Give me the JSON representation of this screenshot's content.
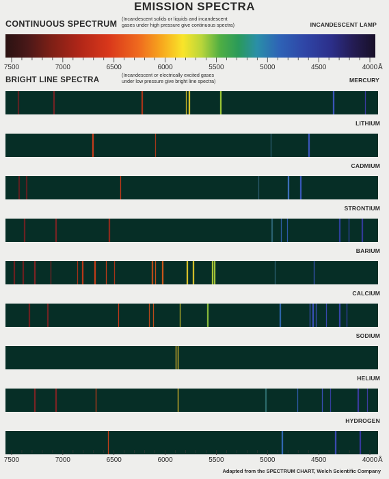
{
  "title": "EMISSION SPECTRA",
  "continuous": {
    "heading": "CONTINUOUS SPECTRUM",
    "note_line1": "(Incandescent solids or liquids and incandescent",
    "note_line2": "gases under high pressure give continuous spectra)",
    "source_label": "INCANDESCENT LAMP"
  },
  "bright": {
    "heading": "BRIGHT LINE SPECTRA",
    "note_line1": "(Incandescent or electrically excited gases",
    "note_line2": "under low pressure give bright line spectra)"
  },
  "axis": {
    "ticks": [
      7500,
      7000,
      6500,
      6000,
      5500,
      5000,
      4500,
      4000
    ],
    "labels": [
      "7500",
      "7000",
      "6500",
      "6000",
      "5500",
      "5000",
      "4500",
      "4000"
    ],
    "unit": "Å",
    "range": [
      7560,
      3920
    ]
  },
  "elements": [
    {
      "name": "MERCURY",
      "lines": [
        {
          "w": 7440,
          "c": "#5a2222"
        },
        {
          "w": 7090,
          "c": "#702424"
        },
        {
          "w": 6230,
          "c": "#a83418"
        },
        {
          "w": 5800,
          "c": "#c9b426"
        },
        {
          "w": 5770,
          "c": "#d7c22a"
        },
        {
          "w": 5460,
          "c": "#9ac435"
        },
        {
          "w": 4360,
          "c": "#3a55b8"
        },
        {
          "w": 4050,
          "c": "#3a3aa0"
        }
      ]
    },
    {
      "name": "LITHIUM",
      "lines": [
        {
          "w": 6710,
          "c": "#c23c1c"
        },
        {
          "w": 6100,
          "c": "#a4381a"
        },
        {
          "w": 4970,
          "c": "#2b5e6e"
        },
        {
          "w": 4600,
          "c": "#3a56b8"
        }
      ]
    },
    {
      "name": "CADMIUM",
      "lines": [
        {
          "w": 7430,
          "c": "#5a2020"
        },
        {
          "w": 7360,
          "c": "#5a2020"
        },
        {
          "w": 6440,
          "c": "#c03818"
        },
        {
          "w": 5090,
          "c": "#2a5a6a"
        },
        {
          "w": 4800,
          "c": "#3b6fb9"
        },
        {
          "w": 4680,
          "c": "#3857b8"
        }
      ]
    },
    {
      "name": "STRONTIUM",
      "lines": [
        {
          "w": 7380,
          "c": "#6a2222"
        },
        {
          "w": 7070,
          "c": "#742424"
        },
        {
          "w": 6550,
          "c": "#8a2a1c"
        },
        {
          "w": 4960,
          "c": "#2a6070"
        },
        {
          "w": 4870,
          "c": "#2f5fa6"
        },
        {
          "w": 4810,
          "c": "#2c58a8"
        },
        {
          "w": 4300,
          "c": "#2c3f9a"
        },
        {
          "w": 4210,
          "c": "#3245a4"
        },
        {
          "w": 4080,
          "c": "#323a96"
        }
      ]
    },
    {
      "name": "BARIUM",
      "lines": [
        {
          "w": 7480,
          "c": "#6a2020"
        },
        {
          "w": 7390,
          "c": "#6a2020"
        },
        {
          "w": 7280,
          "c": "#7a2424"
        },
        {
          "w": 7120,
          "c": "#762424"
        },
        {
          "w": 6860,
          "c": "#a03018"
        },
        {
          "w": 6810,
          "c": "#b63818"
        },
        {
          "w": 6690,
          "c": "#c03c18"
        },
        {
          "w": 6580,
          "c": "#c23c18"
        },
        {
          "w": 6500,
          "c": "#a53418"
        },
        {
          "w": 6130,
          "c": "#b64a18"
        },
        {
          "w": 6100,
          "c": "#c04c1a"
        },
        {
          "w": 6030,
          "c": "#c8561a"
        },
        {
          "w": 5790,
          "c": "#d7c02a"
        },
        {
          "w": 5730,
          "c": "#d0bc2a"
        },
        {
          "w": 5540,
          "c": "#aac437"
        },
        {
          "w": 5520,
          "c": "#9cc038"
        },
        {
          "w": 4930,
          "c": "#2a6070"
        },
        {
          "w": 4550,
          "c": "#3855b4"
        }
      ]
    },
    {
      "name": "CALCIUM",
      "lines": [
        {
          "w": 7330,
          "c": "#6a2020"
        },
        {
          "w": 7150,
          "c": "#702424"
        },
        {
          "w": 6460,
          "c": "#c0381a"
        },
        {
          "w": 6160,
          "c": "#b8481a"
        },
        {
          "w": 6120,
          "c": "#bc4a1a"
        },
        {
          "w": 5860,
          "c": "#b8b028"
        },
        {
          "w": 5590,
          "c": "#86b83a"
        },
        {
          "w": 4880,
          "c": "#2d64a8"
        },
        {
          "w": 4590,
          "c": "#3a52b8"
        },
        {
          "w": 4560,
          "c": "#3a50b6"
        },
        {
          "w": 4530,
          "c": "#3a4eb4"
        },
        {
          "w": 4430,
          "c": "#3848ae"
        },
        {
          "w": 4300,
          "c": "#3545a8"
        },
        {
          "w": 4230,
          "c": "#3440a4"
        }
      ]
    },
    {
      "name": "SODIUM",
      "lines": [
        {
          "w": 5900,
          "c": "#e2b82a"
        },
        {
          "w": 5880,
          "c": "#e8c02c"
        }
      ]
    },
    {
      "name": "HELIUM",
      "lines": [
        {
          "w": 7280,
          "c": "#782424"
        },
        {
          "w": 7070,
          "c": "#7a2424"
        },
        {
          "w": 6680,
          "c": "#c23c18"
        },
        {
          "w": 5880,
          "c": "#e4bc2a"
        },
        {
          "w": 5020,
          "c": "#2b6a6a"
        },
        {
          "w": 4710,
          "c": "#2f5aa8"
        },
        {
          "w": 4470,
          "c": "#3a4eb6"
        },
        {
          "w": 4390,
          "c": "#343e9c"
        },
        {
          "w": 4120,
          "c": "#3a3a9c"
        },
        {
          "w": 4030,
          "c": "#3c3ca0"
        }
      ]
    },
    {
      "name": "HYDROGEN",
      "lines": [
        {
          "w": 6560,
          "c": "#c83e18"
        },
        {
          "w": 4860,
          "c": "#3066b0"
        },
        {
          "w": 4340,
          "c": "#3a4ab0"
        },
        {
          "w": 4100,
          "c": "#36389c"
        }
      ]
    }
  ],
  "credit": "Adapted from the SPECTRUM CHART, Welch Scientific Company"
}
